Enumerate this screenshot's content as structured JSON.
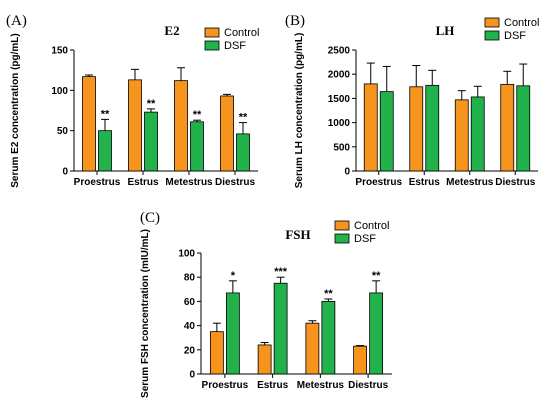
{
  "colors": {
    "control": "#f7941d",
    "dsf": "#22b24c",
    "outline": "#000000"
  },
  "chart_data": [
    {
      "panel_label": "(A)",
      "type": "bar",
      "title": "E2",
      "xlabel": "",
      "ylabel": "Serum E2 concentration (pg/mL)",
      "ylim": [
        0,
        150
      ],
      "yticks": [
        0,
        50,
        100,
        150
      ],
      "categories": [
        "Proestrus",
        "Estrus",
        "Metestrus",
        "Diestrus"
      ],
      "legend_position": "top-right",
      "grid": false,
      "series": [
        {
          "name": "Control",
          "color_key": "control",
          "values": [
            117,
            113,
            112,
            93
          ],
          "errors": [
            2,
            13,
            16,
            2
          ]
        },
        {
          "name": "DSF",
          "color_key": "dsf",
          "values": [
            50,
            73,
            61,
            46
          ],
          "errors": [
            14,
            4,
            2,
            14
          ]
        }
      ],
      "significance": [
        "**",
        "**",
        "**",
        "**"
      ]
    },
    {
      "panel_label": "(B)",
      "type": "bar",
      "title": "LH",
      "xlabel": "",
      "ylabel": "Serum LH concentration (pg/mL)",
      "ylim": [
        0,
        2500
      ],
      "yticks": [
        0,
        500,
        1000,
        1500,
        2000,
        2500
      ],
      "categories": [
        "Proestrus",
        "Estrus",
        "Metestrus",
        "Diestrus"
      ],
      "legend_position": "top-right",
      "grid": false,
      "series": [
        {
          "name": "Control",
          "color_key": "control",
          "values": [
            1800,
            1740,
            1470,
            1790
          ],
          "errors": [
            430,
            440,
            190,
            270
          ]
        },
        {
          "name": "DSF",
          "color_key": "dsf",
          "values": [
            1640,
            1770,
            1530,
            1760
          ],
          "errors": [
            520,
            310,
            220,
            450
          ]
        }
      ],
      "significance": [
        "",
        "",
        "",
        ""
      ]
    },
    {
      "panel_label": "(C)",
      "type": "bar",
      "title": "FSH",
      "xlabel": "",
      "ylabel": "Serum FSH concentration (mIU/mL)",
      "ylim": [
        0,
        100
      ],
      "yticks": [
        0,
        20,
        40,
        60,
        80,
        100
      ],
      "categories": [
        "Proestrus",
        "Estrus",
        "Metestrus",
        "Diestrus"
      ],
      "legend_position": "top-right",
      "grid": false,
      "series": [
        {
          "name": "Control",
          "color_key": "control",
          "values": [
            35,
            24,
            42,
            23
          ],
          "errors": [
            7,
            2,
            2,
            0.5
          ]
        },
        {
          "name": "DSF",
          "color_key": "dsf",
          "values": [
            67,
            75,
            60,
            67
          ],
          "errors": [
            10,
            5,
            2,
            10
          ]
        }
      ],
      "significance": [
        "*",
        "***",
        "**",
        "**"
      ]
    }
  ]
}
